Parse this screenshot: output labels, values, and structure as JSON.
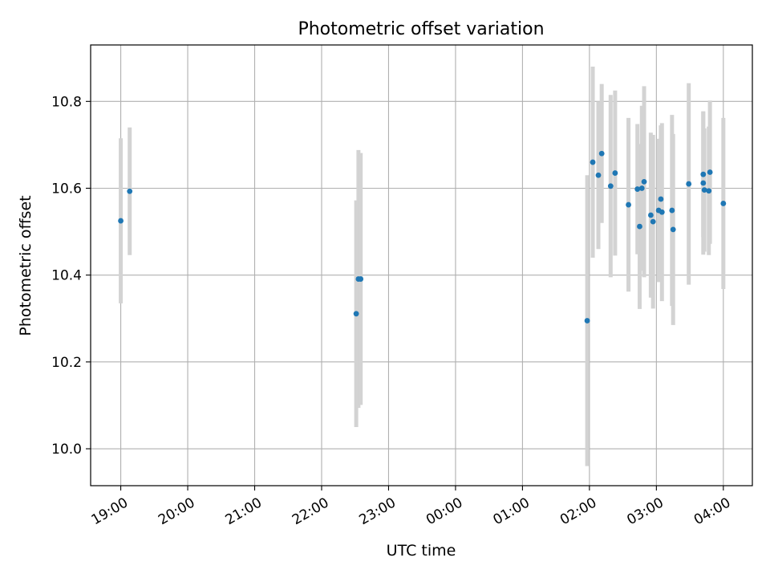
{
  "chart_data": {
    "type": "scatter",
    "title": "Photometric offset variation",
    "xlabel": "UTC time",
    "ylabel": "Photometric offset",
    "x_unit": "time of day (UTC), hours spanning midnight",
    "xlim": [
      "18:33",
      "04:26"
    ],
    "ylim": [
      9.915,
      10.93
    ],
    "grid": true,
    "x_ticks": [
      "19:00",
      "20:00",
      "21:00",
      "22:00",
      "23:00",
      "00:00",
      "01:00",
      "02:00",
      "03:00",
      "04:00"
    ],
    "y_ticks": [
      "10.0",
      "10.2",
      "10.4",
      "10.6",
      "10.8"
    ],
    "colors": {
      "points": "#1f77b4",
      "errorbars": "#d3d3d3",
      "grid": "#b0b0b0"
    },
    "series": [
      {
        "points": [
          {
            "t": "19:00",
            "y": 10.525,
            "err": 0.19
          },
          {
            "t": "19:08",
            "y": 10.593,
            "err": 0.147
          },
          {
            "t": "22:31",
            "y": 10.311,
            "err": 0.261
          },
          {
            "t": "22:33",
            "y": 10.391,
            "err": 0.297
          },
          {
            "t": "22:35",
            "y": 10.391,
            "err": 0.29
          },
          {
            "t": "01:58",
            "y": 10.295,
            "err": 0.335
          },
          {
            "t": "02:03",
            "y": 10.66,
            "err": 0.22
          },
          {
            "t": "02:08",
            "y": 10.63,
            "err": 0.17
          },
          {
            "t": "02:11",
            "y": 10.68,
            "err": 0.16
          },
          {
            "t": "02:19",
            "y": 10.605,
            "err": 0.21
          },
          {
            "t": "02:23",
            "y": 10.635,
            "err": 0.19
          },
          {
            "t": "02:35",
            "y": 10.562,
            "err": 0.2
          },
          {
            "t": "02:43",
            "y": 10.598,
            "err": 0.15
          },
          {
            "t": "02:45",
            "y": 10.512,
            "err": 0.19
          },
          {
            "t": "02:47",
            "y": 10.6,
            "err": 0.19
          },
          {
            "t": "02:49",
            "y": 10.615,
            "err": 0.22
          },
          {
            "t": "02:55",
            "y": 10.538,
            "err": 0.19
          },
          {
            "t": "02:57",
            "y": 10.523,
            "err": 0.2
          },
          {
            "t": "03:02",
            "y": 10.549,
            "err": 0.165
          },
          {
            "t": "03:04",
            "y": 10.575,
            "err": 0.17
          },
          {
            "t": "03:05",
            "y": 10.545,
            "err": 0.205
          },
          {
            "t": "03:14",
            "y": 10.549,
            "err": 0.22
          },
          {
            "t": "03:15",
            "y": 10.505,
            "err": 0.22
          },
          {
            "t": "03:29",
            "y": 10.61,
            "err": 0.232
          },
          {
            "t": "03:42",
            "y": 10.632,
            "err": 0.145
          },
          {
            "t": "03:42",
            "y": 10.612,
            "err": 0.165
          },
          {
            "t": "03:43",
            "y": 10.596,
            "err": 0.142
          },
          {
            "t": "03:47",
            "y": 10.594,
            "err": 0.148
          },
          {
            "t": "03:48",
            "y": 10.637,
            "err": 0.165
          },
          {
            "t": "04:00",
            "y": 10.565,
            "err": 0.197
          }
        ]
      }
    ]
  }
}
